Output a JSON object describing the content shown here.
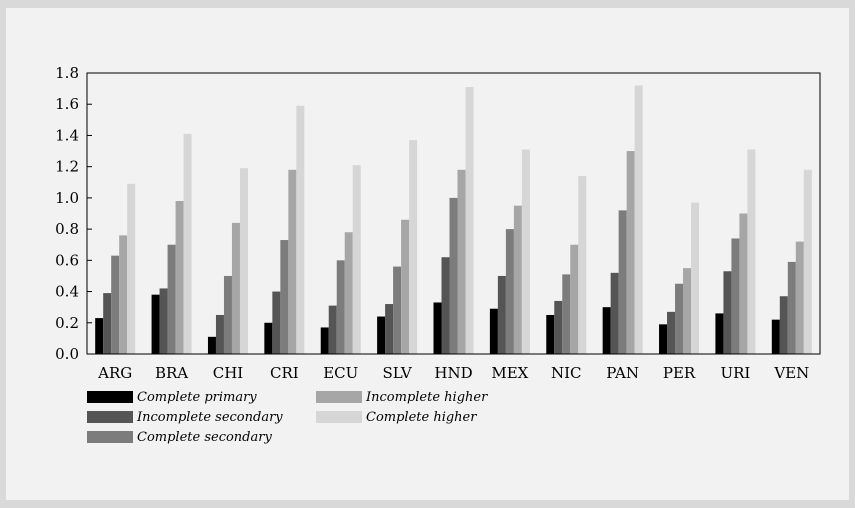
{
  "chart_data": {
    "type": "bar",
    "categories": [
      "ARG",
      "BRA",
      "CHI",
      "CRI",
      "ECU",
      "SLV",
      "HND",
      "MEX",
      "NIC",
      "PAN",
      "PER",
      "URI",
      "VEN"
    ],
    "series": [
      {
        "name": "Complete primary",
        "color": "#000000",
        "values": [
          0.23,
          0.38,
          0.11,
          0.2,
          0.17,
          0.24,
          0.33,
          0.29,
          0.25,
          0.3,
          0.19,
          0.26,
          0.22
        ]
      },
      {
        "name": "Incomplete secondary",
        "color": "#555555",
        "values": [
          0.39,
          0.42,
          0.25,
          0.4,
          0.31,
          0.32,
          0.62,
          0.5,
          0.34,
          0.52,
          0.27,
          0.53,
          0.37
        ]
      },
      {
        "name": "Complete secondary",
        "color": "#7c7c7c",
        "values": [
          0.63,
          0.7,
          0.5,
          0.73,
          0.6,
          0.56,
          1.0,
          0.8,
          0.51,
          0.92,
          0.45,
          0.74,
          0.59
        ]
      },
      {
        "name": "Incomplete higher",
        "color": "#a6a6a6",
        "values": [
          0.76,
          0.98,
          0.84,
          1.18,
          0.78,
          0.86,
          1.18,
          0.95,
          0.7,
          1.3,
          0.55,
          0.9,
          0.72
        ]
      },
      {
        "name": "Complete higher",
        "color": "#d6d6d6",
        "values": [
          1.09,
          1.41,
          1.19,
          1.59,
          1.21,
          1.37,
          1.71,
          1.31,
          1.14,
          1.72,
          0.97,
          1.31,
          1.18
        ]
      }
    ],
    "ylim": [
      0.0,
      1.8
    ],
    "yticks": [
      "0.0",
      "0.2",
      "0.4",
      "0.6",
      "0.8",
      "1.0",
      "1.2",
      "1.4",
      "1.6",
      "1.8"
    ],
    "grid": false,
    "legend_position": "bottom-left"
  }
}
